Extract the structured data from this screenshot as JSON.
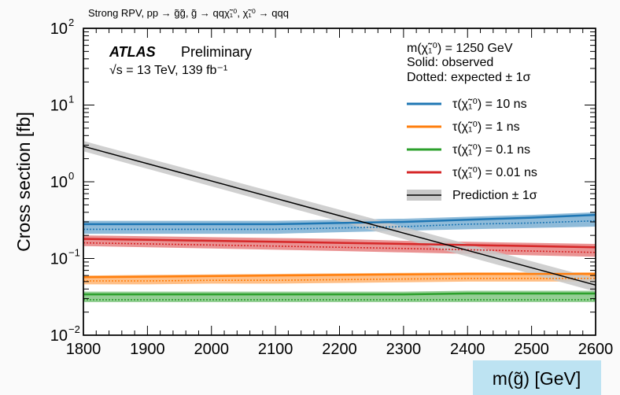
{
  "header": "Strong RPV, pp → g̃g̃, g̃ → qqχ̃₁⁰, χ̃₁⁰ → qqq",
  "atlas": {
    "label": "ATLAS",
    "status": "Preliminary",
    "energy": "√s = 13 TeV, 139 fb⁻¹"
  },
  "legend_header": [
    "m(χ̃₁⁰) = 1250 GeV",
    "Solid: observed",
    "Dotted: expected ± 1σ"
  ],
  "colors": {
    "tau10": "#1f77b4",
    "tau1": "#ff7f0e",
    "tau01": "#2ca02c",
    "tau001": "#d62728",
    "prediction": "#000000",
    "prediction_band": "#c8c8c8",
    "xlabel_bg": "#bde3f2"
  },
  "chart_data": {
    "type": "line",
    "xlabel": "m(g̃) [GeV]",
    "ylabel": "Cross section [fb]",
    "xlim": [
      1800,
      2600
    ],
    "ylim": [
      0.01,
      100
    ],
    "yscale": "log",
    "x_ticks": [
      "1800",
      "1900",
      "2000",
      "2100",
      "2200",
      "2300",
      "2400",
      "2500",
      "2600"
    ],
    "y_ticks": [
      {
        "base": "10",
        "exp": "−2"
      },
      {
        "base": "10",
        "exp": "−1"
      },
      {
        "base": "10",
        "exp": "0"
      },
      {
        "base": "10",
        "exp": "1"
      },
      {
        "base": "10",
        "exp": "2"
      }
    ],
    "x": [
      1800,
      1900,
      2000,
      2100,
      2200,
      2300,
      2400,
      2500,
      2600
    ],
    "series": [
      {
        "name": "τ(χ̃₁⁰) = 10 ns",
        "color_key": "tau10",
        "observed": [
          0.28,
          0.28,
          0.28,
          0.28,
          0.29,
          0.3,
          0.32,
          0.34,
          0.37
        ],
        "expected": [
          0.24,
          0.24,
          0.24,
          0.24,
          0.25,
          0.26,
          0.28,
          0.29,
          0.31
        ],
        "band_low": [
          0.21,
          0.21,
          0.21,
          0.21,
          0.22,
          0.23,
          0.24,
          0.25,
          0.26
        ],
        "band_high": [
          0.31,
          0.31,
          0.31,
          0.31,
          0.32,
          0.33,
          0.35,
          0.37,
          0.4
        ]
      },
      {
        "name": "τ(χ̃₁⁰) = 1 ns",
        "color_key": "tau1",
        "observed": [
          0.057,
          0.058,
          0.059,
          0.06,
          0.061,
          0.062,
          0.063,
          0.063,
          0.063
        ],
        "expected": [
          0.051,
          0.051,
          0.052,
          0.052,
          0.053,
          0.054,
          0.055,
          0.055,
          0.055
        ],
        "band_low": [
          0.046,
          0.046,
          0.047,
          0.047,
          0.048,
          0.049,
          0.05,
          0.05,
          0.05
        ],
        "band_high": [
          0.06,
          0.061,
          0.062,
          0.063,
          0.064,
          0.065,
          0.066,
          0.066,
          0.066
        ]
      },
      {
        "name": "τ(χ̃₁⁰) = 0.1 ns",
        "color_key": "tau01",
        "observed": [
          0.034,
          0.034,
          0.034,
          0.034,
          0.034,
          0.034,
          0.035,
          0.035,
          0.035
        ],
        "expected": [
          0.029,
          0.029,
          0.029,
          0.029,
          0.029,
          0.029,
          0.029,
          0.029,
          0.029
        ],
        "band_low": [
          0.027,
          0.027,
          0.027,
          0.027,
          0.027,
          0.027,
          0.027,
          0.027,
          0.027
        ],
        "band_high": [
          0.037,
          0.037,
          0.037,
          0.037,
          0.037,
          0.037,
          0.038,
          0.038,
          0.038
        ]
      },
      {
        "name": "τ(χ̃₁⁰) = 0.01 ns",
        "color_key": "tau001",
        "observed": [
          0.18,
          0.175,
          0.17,
          0.165,
          0.16,
          0.155,
          0.15,
          0.145,
          0.14
        ],
        "expected": [
          0.16,
          0.155,
          0.15,
          0.145,
          0.14,
          0.135,
          0.13,
          0.125,
          0.12
        ],
        "band_low": [
          0.145,
          0.14,
          0.135,
          0.13,
          0.125,
          0.12,
          0.115,
          0.11,
          0.105
        ],
        "band_high": [
          0.2,
          0.195,
          0.19,
          0.185,
          0.18,
          0.17,
          0.165,
          0.16,
          0.155
        ]
      },
      {
        "name": "Prediction ± 1σ",
        "color_key": "prediction",
        "x": [
          1800,
          2600
        ],
        "values": [
          2.9,
          0.045
        ],
        "band_low": [
          2.5,
          0.037
        ],
        "band_high": [
          3.4,
          0.055
        ]
      }
    ],
    "legend_placement": "top-right"
  }
}
